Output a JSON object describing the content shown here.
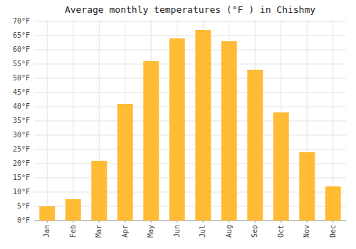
{
  "chart_data": {
    "type": "bar",
    "title": "Average monthly temperatures (°F ) in Chishmy",
    "categories": [
      "Jan",
      "Feb",
      "Mar",
      "Apr",
      "May",
      "Jun",
      "Jul",
      "Aug",
      "Sep",
      "Oct",
      "Nov",
      "Dec"
    ],
    "values": [
      5,
      7.5,
      21,
      41,
      56,
      64,
      67,
      63,
      53,
      38,
      24,
      12
    ],
    "color": "#FFBB33",
    "ylim": [
      0,
      70
    ],
    "yticks": [
      {
        "value": 0,
        "label": "0°F"
      },
      {
        "value": 5,
        "label": "5°F"
      },
      {
        "value": 10,
        "label": "10°F"
      },
      {
        "value": 15,
        "label": "15°F"
      },
      {
        "value": 20,
        "label": "20°F"
      },
      {
        "value": 25,
        "label": "25°F"
      },
      {
        "value": 30,
        "label": "30°F"
      },
      {
        "value": 35,
        "label": "35°F"
      },
      {
        "value": 40,
        "label": "40°F"
      },
      {
        "value": 45,
        "label": "45°F"
      },
      {
        "value": 50,
        "label": "50°F"
      },
      {
        "value": 55,
        "label": "55°F"
      },
      {
        "value": 60,
        "label": "60°F"
      },
      {
        "value": 65,
        "label": "65°F"
      },
      {
        "value": 70,
        "label": "70°F"
      }
    ],
    "grid": true
  }
}
